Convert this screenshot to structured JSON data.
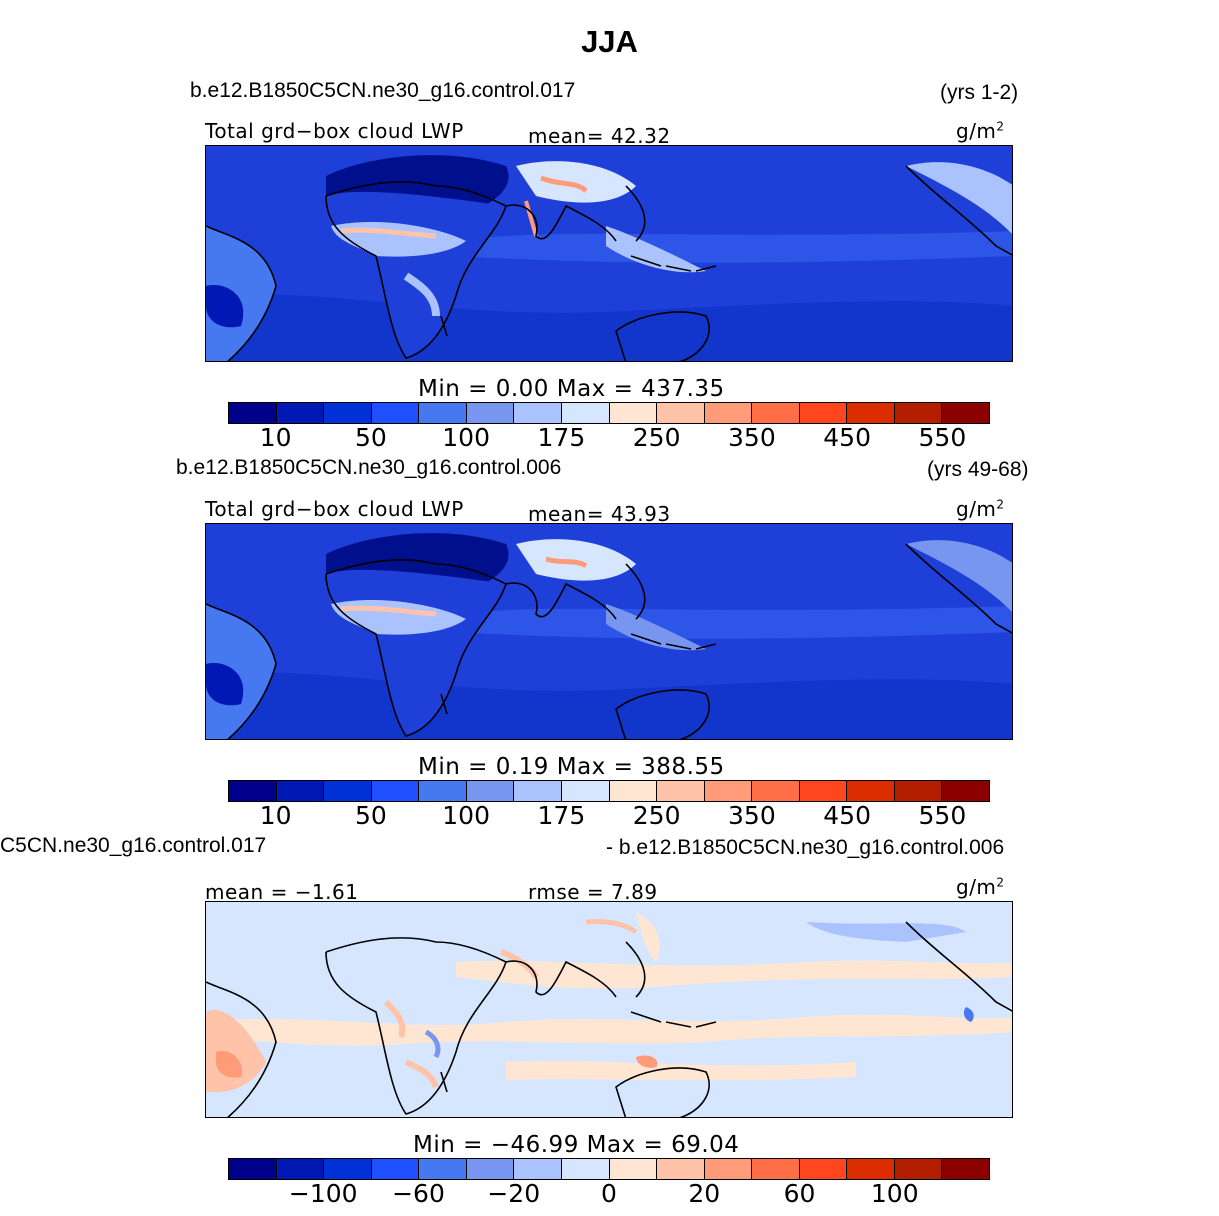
{
  "figure": {
    "season": "JJA"
  },
  "panels": [
    {
      "case_name": "b.e12.B1850C5CN.ne30_g16.control.017",
      "years": "(yrs 1-2)",
      "left_label": "Total grd−box cloud LWP",
      "stat_text": "mean=  42.32",
      "units": "g/m",
      "units_exp": "2",
      "minmax_text": "Min  =    0.00  Max  =  437.35",
      "colorbar_ticks": [
        "10",
        "50",
        "100",
        "175",
        "250",
        "350",
        "450",
        "550"
      ],
      "ocean_color": "#1e3fd8"
    },
    {
      "case_name": "b.e12.B1850C5CN.ne30_g16.control.006",
      "years": "(yrs 49-68)",
      "left_label": "Total grd−box cloud LWP",
      "stat_text": "mean=  43.93",
      "units": "g/m",
      "units_exp": "2",
      "minmax_text": "Min  =    0.19  Max  =  388.55",
      "colorbar_ticks": [
        "10",
        "50",
        "100",
        "175",
        "250",
        "350",
        "450",
        "550"
      ],
      "ocean_color": "#1e3fd8"
    },
    {
      "case_name": "C5CN.ne30_g16.control.017",
      "years": "- b.e12.B1850C5CN.ne30_g16.control.006",
      "left_label": "mean =  −1.61",
      "stat_text": "rmse =    7.89",
      "units": "g/m",
      "units_exp": "2",
      "minmax_text": "Min  = −46.99  Max  =   69.04",
      "colorbar_ticks": [
        "−100",
        "−60",
        "−20",
        "0",
        "20",
        "60",
        "100"
      ],
      "ocean_color": "#d6e6ff"
    }
  ],
  "colorbar_colors": [
    "#00008c",
    "#0018b4",
    "#0032d8",
    "#1e50ff",
    "#4678f0",
    "#7896f0",
    "#aac3ff",
    "#d6e6ff",
    "#ffe6d2",
    "#ffc3aa",
    "#ff9b78",
    "#ff6e46",
    "#ff461e",
    "#dc2d00",
    "#b41e00",
    "#8c0000"
  ]
}
